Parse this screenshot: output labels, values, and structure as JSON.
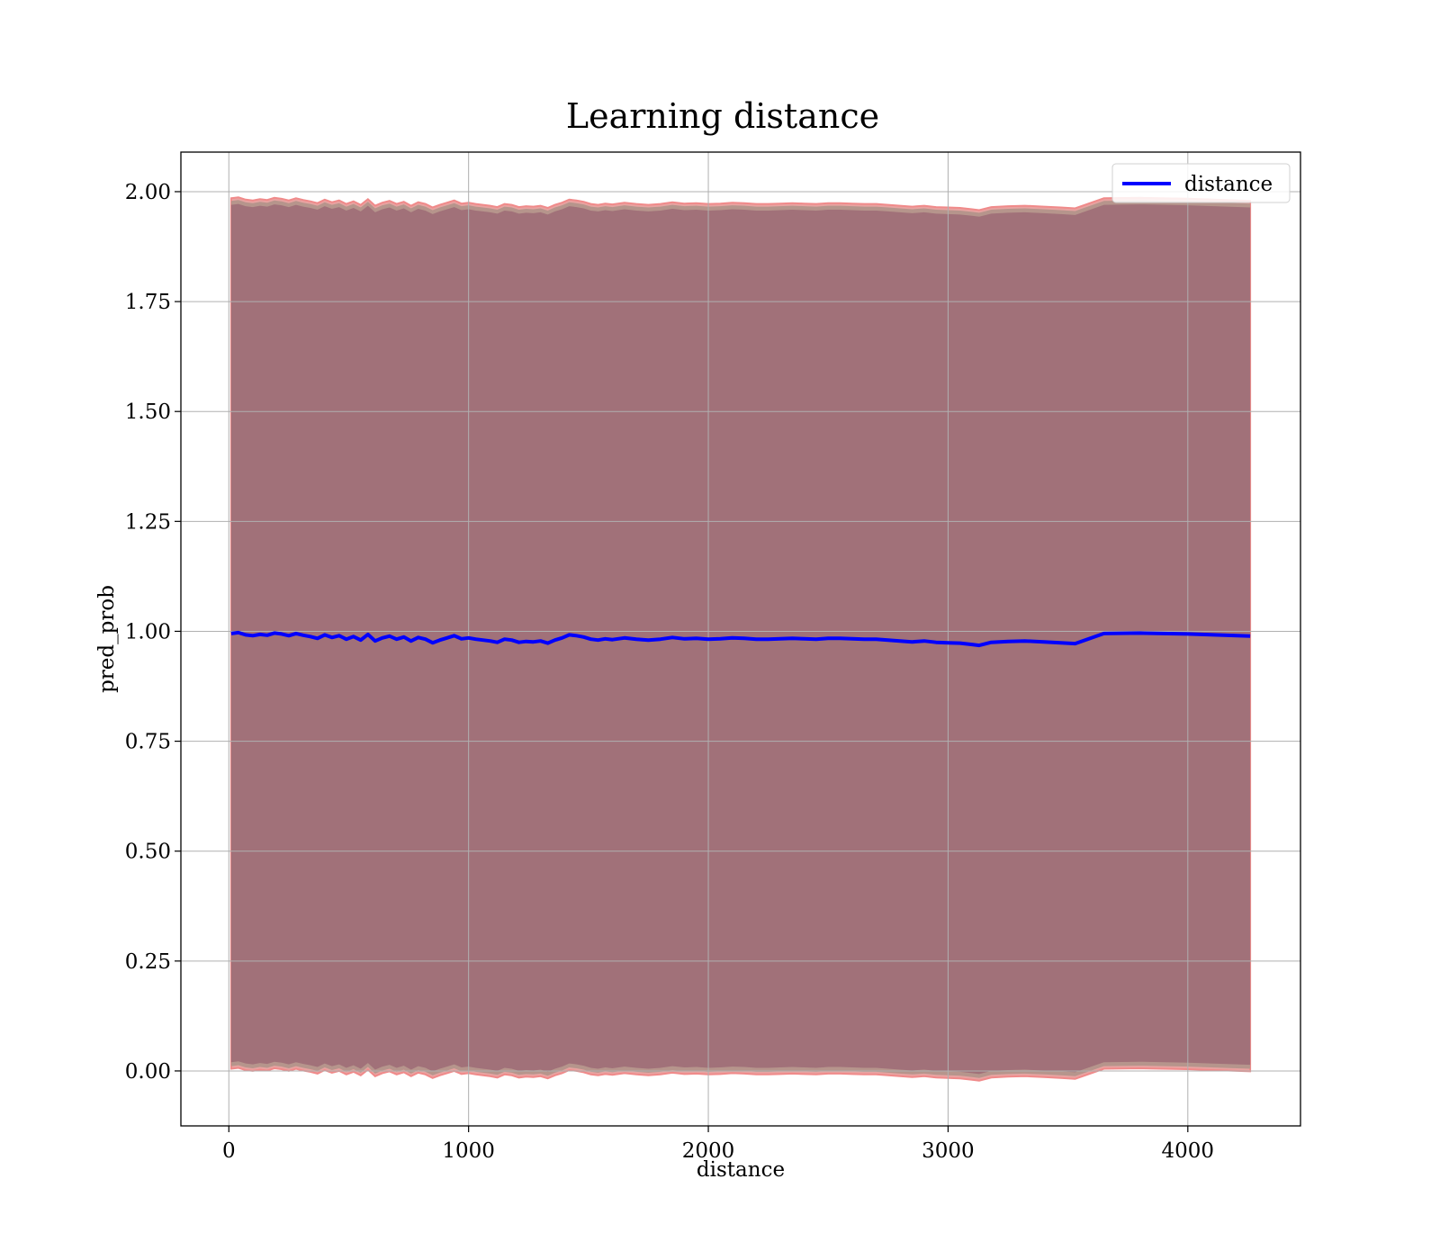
{
  "chart_data": {
    "type": "line",
    "title": "Learning distance",
    "xlabel": "distance",
    "ylabel": "pred_prob",
    "xlim": [
      -200,
      4470
    ],
    "ylim": [
      -0.125,
      2.09
    ],
    "xticks": [
      0,
      1000,
      2000,
      3000,
      4000
    ],
    "xtick_labels": [
      "0",
      "1000",
      "2000",
      "3000",
      "4000"
    ],
    "yticks": [
      0.0,
      0.25,
      0.5,
      0.75,
      1.0,
      1.25,
      1.5,
      1.75,
      2.0
    ],
    "ytick_labels": [
      "0.00",
      "0.25",
      "0.50",
      "0.75",
      "1.00",
      "1.25",
      "1.50",
      "1.75",
      "2.00"
    ],
    "grid": true,
    "legend": {
      "position": "top-right",
      "entries": [
        "distance"
      ]
    },
    "band_offsets": {
      "outer": 0.99,
      "inner": 0.975
    },
    "series": [
      {
        "name": "distance",
        "color": "#0000ff",
        "x": [
          10,
          40,
          70,
          100,
          130,
          160,
          190,
          220,
          250,
          280,
          310,
          340,
          370,
          400,
          430,
          460,
          490,
          520,
          550,
          580,
          610,
          640,
          670,
          700,
          730,
          760,
          790,
          820,
          850,
          880,
          910,
          940,
          970,
          1000,
          1030,
          1060,
          1090,
          1120,
          1150,
          1180,
          1210,
          1240,
          1270,
          1300,
          1330,
          1360,
          1390,
          1420,
          1450,
          1480,
          1510,
          1540,
          1570,
          1600,
          1650,
          1700,
          1750,
          1800,
          1850,
          1900,
          1950,
          2000,
          2050,
          2100,
          2150,
          2200,
          2250,
          2300,
          2350,
          2400,
          2450,
          2500,
          2550,
          2600,
          2650,
          2700,
          2750,
          2800,
          2850,
          2900,
          2950,
          3000,
          3050,
          3100,
          3130,
          3180,
          3250,
          3320,
          3400,
          3470,
          3530,
          3650,
          3800,
          4000,
          4260
        ],
        "y": [
          0.995,
          0.997,
          0.992,
          0.99,
          0.993,
          0.991,
          0.996,
          0.994,
          0.99,
          0.995,
          0.991,
          0.988,
          0.984,
          0.992,
          0.986,
          0.99,
          0.982,
          0.988,
          0.98,
          0.993,
          0.978,
          0.985,
          0.989,
          0.982,
          0.987,
          0.978,
          0.986,
          0.982,
          0.974,
          0.98,
          0.985,
          0.99,
          0.983,
          0.985,
          0.982,
          0.98,
          0.978,
          0.975,
          0.982,
          0.98,
          0.975,
          0.977,
          0.976,
          0.978,
          0.973,
          0.98,
          0.985,
          0.992,
          0.99,
          0.987,
          0.982,
          0.98,
          0.983,
          0.981,
          0.985,
          0.982,
          0.98,
          0.982,
          0.986,
          0.983,
          0.984,
          0.982,
          0.983,
          0.985,
          0.984,
          0.982,
          0.982,
          0.983,
          0.984,
          0.983,
          0.982,
          0.984,
          0.984,
          0.983,
          0.982,
          0.982,
          0.98,
          0.978,
          0.976,
          0.978,
          0.975,
          0.974,
          0.973,
          0.97,
          0.968,
          0.975,
          0.977,
          0.978,
          0.976,
          0.974,
          0.972,
          0.995,
          0.996,
          0.994,
          0.989
        ]
      }
    ]
  }
}
